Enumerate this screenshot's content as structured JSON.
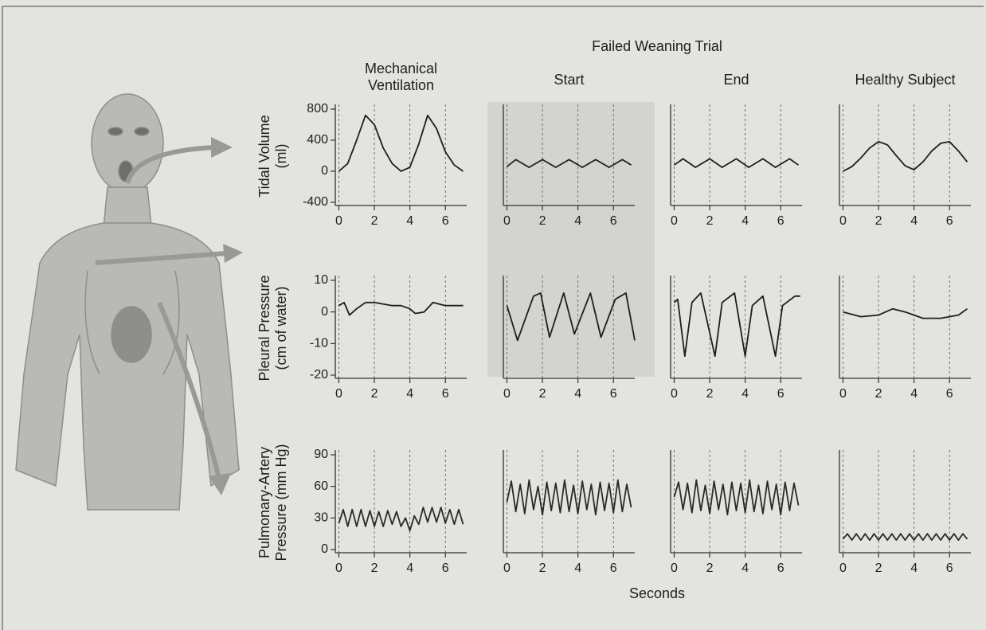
{
  "figure": {
    "group_title": "Failed Weaning Trial",
    "x_label": "Seconds"
  },
  "chart_data": [
    {
      "type": "line",
      "title": "Mechanical Ventilation",
      "y_label": "Tidal Volume (ml)",
      "color": "#1e1e1e",
      "grid": true,
      "x": [
        0,
        0.5,
        1,
        1.5,
        2,
        2.5,
        3,
        3.5,
        4,
        4.5,
        5,
        5.5,
        6,
        6.5,
        7
      ],
      "values": [
        0,
        100,
        400,
        720,
        600,
        300,
        100,
        0,
        50,
        350,
        720,
        550,
        250,
        80,
        0
      ],
      "xlim": [
        -0.2,
        7.2
      ],
      "ylim": [
        -400,
        800
      ],
      "xticks": [
        0,
        2,
        4,
        6
      ],
      "yticks": [
        -400,
        0,
        400,
        800
      ]
    },
    {
      "type": "line",
      "title": "Start",
      "color": "#1e1e1e",
      "grid": true,
      "x": [
        0,
        0.5,
        1.25,
        2,
        2.75,
        3.5,
        4.25,
        5,
        5.75,
        6.5,
        7
      ],
      "values": [
        60,
        150,
        50,
        150,
        50,
        150,
        50,
        150,
        50,
        150,
        80
      ],
      "xlim": [
        -0.2,
        7.2
      ],
      "ylim": [
        -400,
        800
      ],
      "xticks": [
        0,
        2,
        4,
        6
      ]
    },
    {
      "type": "line",
      "title": "End",
      "color": "#1e1e1e",
      "grid": true,
      "x": [
        0,
        0.5,
        1.2,
        2,
        2.7,
        3.5,
        4.2,
        5,
        5.7,
        6.5,
        7
      ],
      "values": [
        80,
        160,
        50,
        160,
        50,
        160,
        50,
        160,
        50,
        160,
        80
      ],
      "xlim": [
        -0.2,
        7.2
      ],
      "ylim": [
        -400,
        800
      ],
      "xticks": [
        0,
        2,
        4,
        6
      ]
    },
    {
      "type": "line",
      "title": "Healthy Subject",
      "color": "#1e1e1e",
      "grid": true,
      "x": [
        0,
        0.5,
        1,
        1.5,
        2,
        2.5,
        3,
        3.5,
        4,
        4.5,
        5,
        5.5,
        6,
        6.5,
        7
      ],
      "values": [
        0,
        60,
        170,
        300,
        380,
        340,
        200,
        70,
        20,
        120,
        260,
        360,
        380,
        260,
        120
      ],
      "xlim": [
        -0.2,
        7.2
      ],
      "ylim": [
        -400,
        800
      ],
      "xticks": [
        0,
        2,
        4,
        6
      ]
    },
    {
      "type": "line",
      "y_label": "Pleural Pressure (cm of water)",
      "color": "#1e1e1e",
      "grid": true,
      "x": [
        0,
        0.3,
        0.6,
        1,
        1.5,
        2,
        2.5,
        3,
        3.5,
        4,
        4.3,
        4.8,
        5.3,
        6,
        7
      ],
      "values": [
        2,
        3,
        -1,
        1,
        3,
        3,
        2.5,
        2,
        2,
        1,
        -0.5,
        0,
        3,
        2,
        2
      ],
      "xlim": [
        -0.2,
        7.2
      ],
      "ylim": [
        -20,
        10
      ],
      "xticks": [
        0,
        2,
        4,
        6
      ],
      "yticks": [
        -20,
        -10,
        0,
        10
      ]
    },
    {
      "type": "line",
      "color": "#1e1e1e",
      "grid": true,
      "x": [
        0,
        0.6,
        1.5,
        1.9,
        2.4,
        3.2,
        3.8,
        4.7,
        5.3,
        6.1,
        6.7,
        7.2
      ],
      "values": [
        2,
        -9,
        5,
        6,
        -8,
        6,
        -7,
        6,
        -8,
        4,
        6,
        -9
      ],
      "xlim": [
        -0.2,
        7.2
      ],
      "ylim": [
        -20,
        10
      ],
      "xticks": [
        0,
        2,
        4,
        6
      ]
    },
    {
      "type": "line",
      "color": "#1e1e1e",
      "grid": true,
      "x": [
        0,
        0.2,
        0.6,
        1,
        1.5,
        2.3,
        2.7,
        3.4,
        4,
        4.4,
        5,
        5.7,
        6.1,
        6.8,
        7.1
      ],
      "values": [
        3,
        4,
        -14,
        3,
        6,
        -14,
        3,
        6,
        -14,
        2,
        5,
        -14,
        2,
        5,
        5
      ],
      "xlim": [
        -0.2,
        7.2
      ],
      "ylim": [
        -20,
        10
      ],
      "xticks": [
        0,
        2,
        4,
        6
      ]
    },
    {
      "type": "line",
      "color": "#1e1e1e",
      "grid": true,
      "x": [
        0,
        1,
        2,
        2.8,
        3.5,
        4.5,
        5.5,
        6.5,
        7
      ],
      "values": [
        0,
        -1.5,
        -1,
        1,
        0,
        -2,
        -2,
        -1,
        1
      ],
      "xlim": [
        -0.2,
        7.2
      ],
      "ylim": [
        -20,
        10
      ],
      "xticks": [
        0,
        2,
        4,
        6
      ]
    },
    {
      "type": "line",
      "y_label": "Pulmonary-Artery Pressure (mm Hg)",
      "color": "#2a2a2a",
      "grid": true,
      "x": [
        0,
        0.25,
        0.5,
        0.75,
        1,
        1.25,
        1.5,
        1.75,
        2,
        2.25,
        2.5,
        2.75,
        3,
        3.25,
        3.5,
        3.75,
        4,
        4.25,
        4.5,
        4.75,
        5,
        5.25,
        5.5,
        5.75,
        6,
        6.25,
        6.5,
        6.75,
        7
      ],
      "values": [
        25,
        38,
        22,
        38,
        22,
        38,
        22,
        37,
        22,
        36,
        22,
        37,
        24,
        36,
        22,
        30,
        18,
        32,
        24,
        40,
        26,
        40,
        26,
        40,
        25,
        38,
        24,
        38,
        24
      ],
      "xlim": [
        -0.2,
        7.2
      ],
      "ylim": [
        0,
        90
      ],
      "xticks": [
        0,
        2,
        4,
        6
      ],
      "yticks": [
        0,
        30,
        60,
        90
      ]
    },
    {
      "type": "line",
      "color": "#2a2a2a",
      "grid": true,
      "x": [
        0,
        0.25,
        0.5,
        0.75,
        1,
        1.25,
        1.5,
        1.75,
        2,
        2.25,
        2.5,
        2.75,
        3,
        3.25,
        3.5,
        3.75,
        4,
        4.25,
        4.5,
        4.75,
        5,
        5.25,
        5.5,
        5.75,
        6,
        6.25,
        6.5,
        6.75,
        7
      ],
      "values": [
        45,
        65,
        36,
        62,
        34,
        66,
        38,
        60,
        33,
        64,
        37,
        63,
        35,
        66,
        36,
        61,
        34,
        65,
        38,
        62,
        33,
        64,
        37,
        63,
        35,
        66,
        36,
        62,
        40
      ],
      "xlim": [
        -0.2,
        7.2
      ],
      "ylim": [
        0,
        90
      ],
      "xticks": [
        0,
        2,
        4,
        6
      ]
    },
    {
      "type": "line",
      "color": "#2a2a2a",
      "grid": true,
      "x": [
        0,
        0.25,
        0.5,
        0.75,
        1,
        1.25,
        1.5,
        1.75,
        2,
        2.25,
        2.5,
        2.75,
        3,
        3.25,
        3.5,
        3.75,
        4,
        4.25,
        4.5,
        4.75,
        5,
        5.25,
        5.5,
        5.75,
        6,
        6.25,
        6.5,
        6.75,
        7
      ],
      "values": [
        50,
        64,
        38,
        63,
        35,
        66,
        37,
        61,
        34,
        65,
        38,
        62,
        33,
        64,
        37,
        63,
        35,
        66,
        36,
        61,
        34,
        65,
        38,
        62,
        33,
        64,
        37,
        63,
        42
      ],
      "xlim": [
        -0.2,
        7.2
      ],
      "ylim": [
        0,
        90
      ],
      "xticks": [
        0,
        2,
        4,
        6
      ]
    },
    {
      "type": "line",
      "color": "#2a2a2a",
      "grid": true,
      "x": [
        0,
        0.25,
        0.5,
        0.75,
        1,
        1.25,
        1.5,
        1.75,
        2,
        2.25,
        2.5,
        2.75,
        3,
        3.25,
        3.5,
        3.75,
        4,
        4.25,
        4.5,
        4.75,
        5,
        5.25,
        5.5,
        5.75,
        6,
        6.25,
        6.5,
        6.75,
        7
      ],
      "values": [
        10,
        15,
        9,
        15,
        9,
        15,
        9,
        15,
        9,
        15,
        9,
        15,
        9,
        15,
        9,
        15,
        9,
        15,
        9,
        15,
        9,
        15,
        9,
        15,
        9,
        15,
        9,
        15,
        10
      ],
      "xlim": [
        -0.2,
        7.2
      ],
      "ylim": [
        0,
        90
      ],
      "xticks": [
        0,
        2,
        4,
        6
      ]
    }
  ]
}
